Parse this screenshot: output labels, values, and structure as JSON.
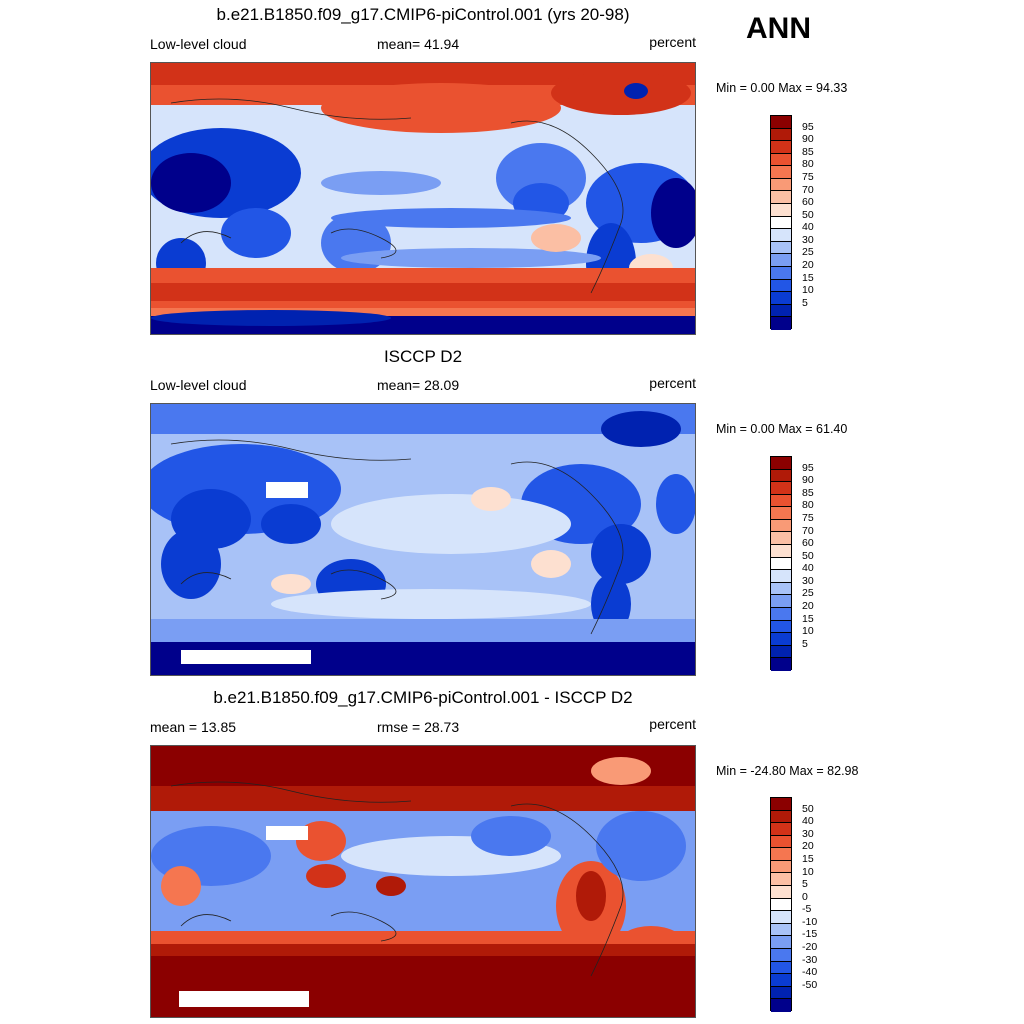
{
  "season": "ANN",
  "palette_abs": [
    "#00008b",
    "#0022b0",
    "#0a3cd2",
    "#2256e6",
    "#4a78ef",
    "#7a9ef3",
    "#a8c2f7",
    "#d6e4fb",
    "#ffffff",
    "#fde0d0",
    "#fbbfa4",
    "#f99a76",
    "#f57650",
    "#ea5230",
    "#d23218",
    "#b01a08",
    "#8b0000"
  ],
  "palette_diff": [
    "#00008b",
    "#0022b0",
    "#0a3cd2",
    "#2256e6",
    "#4a78ef",
    "#7a9ef3",
    "#a8c2f7",
    "#d6e4fb",
    "#ffffff",
    "#fde0d0",
    "#fbbfa4",
    "#f99a76",
    "#f57650",
    "#ea5230",
    "#d23218",
    "#b01a08",
    "#8b0000"
  ],
  "panels": [
    {
      "title": "b.e21.B1850.f09_g17.CMIP6-piControl.001 (yrs 20-98)",
      "left_label": "Low-level cloud",
      "center_label": "mean=  41.94",
      "right_label": "percent",
      "minmax": "Min =   0.00 Max =  94.33",
      "colorbar_labels": [
        "95",
        "90",
        "85",
        "80",
        "75",
        "70",
        "60",
        "50",
        "40",
        "30",
        "25",
        "20",
        "15",
        "10",
        "5"
      ]
    },
    {
      "title": "ISCCP D2",
      "left_label": "Low-level cloud",
      "center_label": "mean=  28.09",
      "right_label": "percent",
      "minmax": "Min =   0.00 Max =  61.40",
      "colorbar_labels": [
        "95",
        "90",
        "85",
        "80",
        "75",
        "70",
        "60",
        "50",
        "40",
        "30",
        "25",
        "20",
        "15",
        "10",
        "5"
      ]
    },
    {
      "title": "b.e21.B1850.f09_g17.CMIP6-piControl.001 - ISCCP D2",
      "left_label": "mean =  13.85",
      "center_label": "rmse =  28.73",
      "right_label": "percent",
      "minmax": "Min = -24.80 Max =  82.98",
      "colorbar_labels": [
        "50",
        "40",
        "30",
        "20",
        "15",
        "10",
        "5",
        "0",
        "-5",
        "-10",
        "-15",
        "-20",
        "-30",
        "-40",
        "-50"
      ]
    }
  ]
}
